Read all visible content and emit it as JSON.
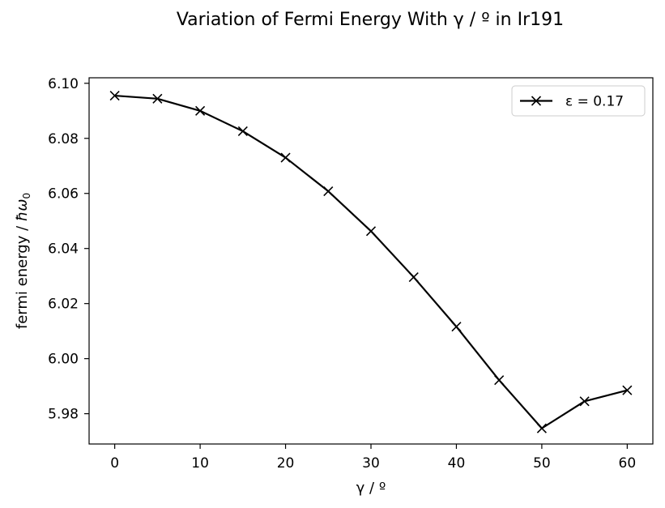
{
  "chart_data": {
    "type": "line",
    "title": "Variation of Fermi Energy With γ / º in Ir191",
    "xlabel": "γ / º",
    "ylabel": "fermi energy / ",
    "ylabel_symbol": "ħω",
    "ylabel_subscript": "0",
    "xlim": [
      -3,
      63
    ],
    "ylim": [
      5.969,
      6.102
    ],
    "x_ticks": [
      0,
      10,
      20,
      30,
      40,
      50,
      60
    ],
    "y_ticks": [
      5.98,
      6.0,
      6.02,
      6.04,
      6.06,
      6.08,
      6.1
    ],
    "y_tick_labels": [
      "5.98",
      "6.00",
      "6.02",
      "6.04",
      "6.06",
      "6.08",
      "6.10"
    ],
    "grid": false,
    "legend_position": "upper-right",
    "series": [
      {
        "name": "ε = 0.17",
        "color": "#000000",
        "marker": "x",
        "x": [
          0,
          5,
          10,
          15,
          20,
          25,
          30,
          35,
          40,
          45,
          50,
          55,
          60
        ],
        "y": [
          6.0955,
          6.0944,
          6.09,
          6.0826,
          6.073,
          6.0608,
          6.0463,
          6.0296,
          6.0116,
          5.9922,
          5.9747,
          5.9845,
          5.9885
        ]
      }
    ]
  }
}
